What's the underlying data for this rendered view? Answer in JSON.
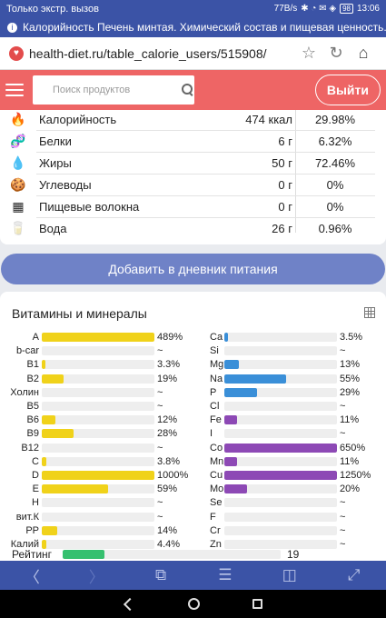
{
  "status_bar": {
    "carrier": "Только экстр. вызов",
    "speed": "77B/s",
    "icons": "✱ ◔ ✉ ◈",
    "battery": "98",
    "time": "13:06"
  },
  "notification": {
    "text": "Калорийность Печень минтая. Химический состав и пищевая ценность."
  },
  "browser": {
    "url": "health-diet.ru/table_calorie_users/515908/",
    "star": "☆",
    "reload": "↻",
    "home": "⌂"
  },
  "header": {
    "search_placeholder": "Поиск продуктов",
    "logout_label": "Выйти"
  },
  "nutrients": [
    {
      "icon": "🔥",
      "icon_name": "fire-icon",
      "name": "Калорийность",
      "amount": "474 ккал",
      "percent": "29.98%"
    },
    {
      "icon": "🧬",
      "icon_name": "protein-icon",
      "name": "Белки",
      "amount": "6 г",
      "percent": "6.32%"
    },
    {
      "icon": "💧",
      "icon_name": "fat-drop-icon",
      "name": "Жиры",
      "amount": "50 г",
      "percent": "72.46%"
    },
    {
      "icon": "🍪",
      "icon_name": "carbs-icon",
      "name": "Углеводы",
      "amount": "0 г",
      "percent": "0%"
    },
    {
      "icon": "▦",
      "icon_name": "fiber-icon",
      "name": "Пищевые волокна",
      "amount": "0 г",
      "percent": "0%"
    },
    {
      "icon": "🥛",
      "icon_name": "water-glass-icon",
      "name": "Вода",
      "amount": "26 г",
      "percent": "0.96%"
    }
  ],
  "add_diary_label": "Добавить в дневник питания",
  "vitamins_title": "Витамины и минералы",
  "colors": {
    "vitamin": "#f0d21a",
    "mineral_blue": "#3a8fd8",
    "mineral_purple": "#8d49b5",
    "rating": "#36c06f",
    "header": "#ee6565",
    "brand": "#3b53a6"
  },
  "vitamins": [
    {
      "name": "A",
      "value": "489%",
      "fill": 100
    },
    {
      "name": "b-car",
      "value": "~",
      "fill": 0
    },
    {
      "name": "B1",
      "value": "3.3%",
      "fill": 3.3
    },
    {
      "name": "B2",
      "value": "19%",
      "fill": 19
    },
    {
      "name": "Холин",
      "value": "~",
      "fill": 0
    },
    {
      "name": "B5",
      "value": "~",
      "fill": 0
    },
    {
      "name": "B6",
      "value": "12%",
      "fill": 12
    },
    {
      "name": "B9",
      "value": "28%",
      "fill": 28
    },
    {
      "name": "B12",
      "value": "~",
      "fill": 0
    },
    {
      "name": "C",
      "value": "3.8%",
      "fill": 3.8
    },
    {
      "name": "D",
      "value": "1000%",
      "fill": 100
    },
    {
      "name": "E",
      "value": "59%",
      "fill": 59
    },
    {
      "name": "H",
      "value": "~",
      "fill": 0
    },
    {
      "name": "вит.К",
      "value": "~",
      "fill": 0
    },
    {
      "name": "PP",
      "value": "14%",
      "fill": 14
    },
    {
      "name": "Калий",
      "value": "4.4%",
      "fill": 4.4
    }
  ],
  "minerals": [
    {
      "name": "Ca",
      "value": "3.5%",
      "fill": 3.5,
      "color": "blue"
    },
    {
      "name": "Si",
      "value": "~",
      "fill": 0,
      "color": "blue"
    },
    {
      "name": "Mg",
      "value": "13%",
      "fill": 13,
      "color": "blue"
    },
    {
      "name": "Na",
      "value": "55%",
      "fill": 55,
      "color": "blue"
    },
    {
      "name": "P",
      "value": "29%",
      "fill": 29,
      "color": "blue"
    },
    {
      "name": "Cl",
      "value": "~",
      "fill": 0,
      "color": "blue"
    },
    {
      "name": "Fe",
      "value": "11%",
      "fill": 11,
      "color": "purple"
    },
    {
      "name": "I",
      "value": "~",
      "fill": 0,
      "color": "purple"
    },
    {
      "name": "Co",
      "value": "650%",
      "fill": 100,
      "color": "purple"
    },
    {
      "name": "Mn",
      "value": "11%",
      "fill": 11,
      "color": "purple"
    },
    {
      "name": "Cu",
      "value": "1250%",
      "fill": 100,
      "color": "purple"
    },
    {
      "name": "Mo",
      "value": "20%",
      "fill": 20,
      "color": "purple"
    },
    {
      "name": "Se",
      "value": "~",
      "fill": 0,
      "color": "purple"
    },
    {
      "name": "F",
      "value": "~",
      "fill": 0,
      "color": "purple"
    },
    {
      "name": "Cr",
      "value": "~",
      "fill": 0,
      "color": "purple"
    },
    {
      "name": "Zn",
      "value": "~",
      "fill": 0,
      "color": "purple"
    }
  ],
  "rating": {
    "label": "Рейтинг",
    "value": "19",
    "fill": 19
  },
  "bottom_nav": {
    "back": "〈",
    "forward": "〉",
    "tabs": "⧉",
    "menu": "☰",
    "reader": "◫",
    "fullscreen": "⤢"
  }
}
